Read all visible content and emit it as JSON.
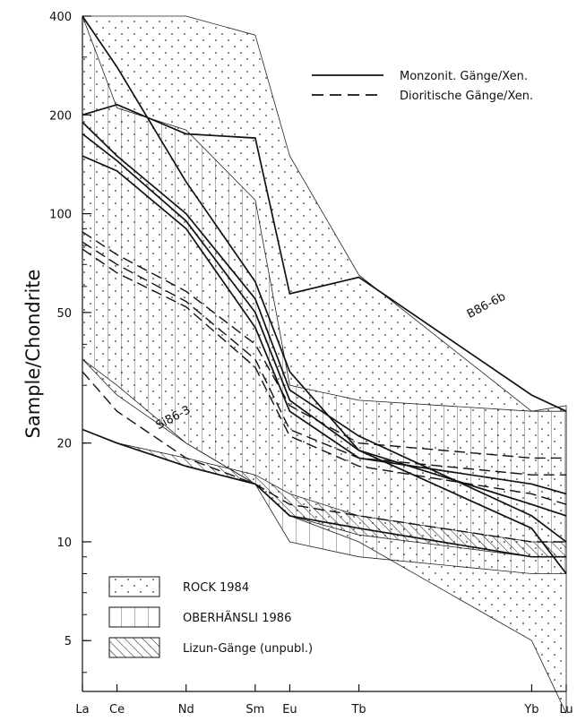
{
  "chart_data": {
    "type": "line",
    "scale_y": "log",
    "ylim": [
      3.5,
      400
    ],
    "ylabel": "Sample/Chondrite",
    "categories": [
      "La",
      "Ce",
      "Nd",
      "Sm",
      "Eu",
      "Tb",
      "Yb",
      "Lu"
    ],
    "category_positions": [
      57,
      58,
      60,
      62,
      63,
      65,
      70,
      71
    ],
    "x_range": [
      57,
      71
    ],
    "yticks": [
      400,
      200,
      100,
      50,
      20,
      10,
      5
    ],
    "series": [
      {
        "style": "solid",
        "x": [
          57,
          58,
          60,
          62,
          63,
          65,
          70,
          71
        ],
        "values": [
          400,
          280,
          125,
          62,
          33,
          19,
          11,
          8
        ]
      },
      {
        "style": "solid",
        "x": [
          57,
          58,
          60,
          62,
          63,
          65,
          70,
          71
        ],
        "values": [
          200,
          215,
          175,
          170,
          57,
          64,
          28,
          25
        ]
      },
      {
        "style": "solid",
        "x": [
          57,
          58,
          60,
          62,
          63,
          65,
          70,
          71
        ],
        "values": [
          190,
          150,
          100,
          55,
          29,
          21,
          12,
          10
        ]
      },
      {
        "style": "solid",
        "x": [
          57,
          58,
          60,
          62,
          63,
          65,
          70,
          71
        ],
        "values": [
          175,
          145,
          95,
          50,
          27,
          19,
          13,
          12
        ]
      },
      {
        "style": "solid",
        "x": [
          57,
          58,
          60,
          62,
          63,
          65,
          70,
          71
        ],
        "values": [
          150,
          135,
          90,
          45,
          25,
          18,
          15,
          14
        ]
      },
      {
        "style": "solid",
        "x": [
          57,
          58,
          60,
          62,
          63,
          65,
          70,
          71
        ],
        "values": [
          22,
          20,
          17,
          15,
          12,
          11,
          9,
          9
        ]
      },
      {
        "style": "dashed",
        "x": [
          57,
          58,
          60,
          62,
          63,
          65,
          70,
          71
        ],
        "values": [
          88,
          75,
          58,
          40,
          26,
          20,
          18,
          18
        ]
      },
      {
        "style": "dashed",
        "x": [
          57,
          58,
          60,
          62,
          63,
          65,
          70,
          71
        ],
        "values": [
          82,
          70,
          54,
          36,
          22,
          18,
          16,
          16
        ]
      },
      {
        "style": "dashed",
        "x": [
          57,
          58,
          60,
          62,
          63,
          65,
          70,
          71
        ],
        "values": [
          78,
          66,
          52,
          34,
          21,
          17,
          14,
          13
        ]
      },
      {
        "style": "dashed",
        "x": [
          57,
          58,
          60,
          62,
          63,
          65,
          70,
          71
        ],
        "values": [
          33,
          25,
          18,
          15,
          13,
          12,
          10,
          10
        ]
      }
    ],
    "areas": [
      {
        "name": "ROCK 1984",
        "pattern": "dots",
        "x": [
          57,
          58,
          60,
          62,
          63,
          65,
          70,
          71
        ],
        "upper": [
          400,
          400,
          400,
          350,
          150,
          65,
          25,
          26
        ],
        "lower": [
          36,
          28,
          20,
          15,
          12,
          10,
          5,
          3
        ]
      },
      {
        "name": "OBERHÄNSLI 1986",
        "pattern": "vlines",
        "x": [
          57,
          58,
          60,
          62,
          63,
          65,
          70,
          71
        ],
        "upper": [
          400,
          210,
          180,
          110,
          30,
          27,
          25,
          25
        ],
        "lower": [
          36,
          30,
          20,
          15,
          10,
          9,
          8,
          8
        ]
      },
      {
        "name": "Lizun-Gänge (unpubl.)",
        "pattern": "hatch",
        "x": [
          57,
          58,
          60,
          62,
          63,
          65,
          70,
          71
        ],
        "upper": [
          22,
          20,
          18,
          16,
          14,
          12,
          10,
          10
        ],
        "lower": [
          22,
          20,
          17,
          15,
          12,
          10.5,
          9,
          9
        ]
      }
    ],
    "legend_lines": [
      {
        "label": "Monzonit. Gänge/Xen.",
        "style": "solid"
      },
      {
        "label": "Dioritische Gänge/Xen.",
        "style": "dashed"
      }
    ],
    "legend_areas": [
      {
        "label": "ROCK 1984",
        "pattern": "dots"
      },
      {
        "label": "OBERHÄNSLI 1986",
        "pattern": "vlines"
      },
      {
        "label": "Lizun-Gänge (unpubl.)",
        "pattern": "hatch"
      }
    ],
    "annotations": [
      {
        "text": "B86-6b",
        "x": 68.2,
        "y": 48
      },
      {
        "text": "Si86-3",
        "x": 59.2,
        "y": 22
      }
    ]
  }
}
